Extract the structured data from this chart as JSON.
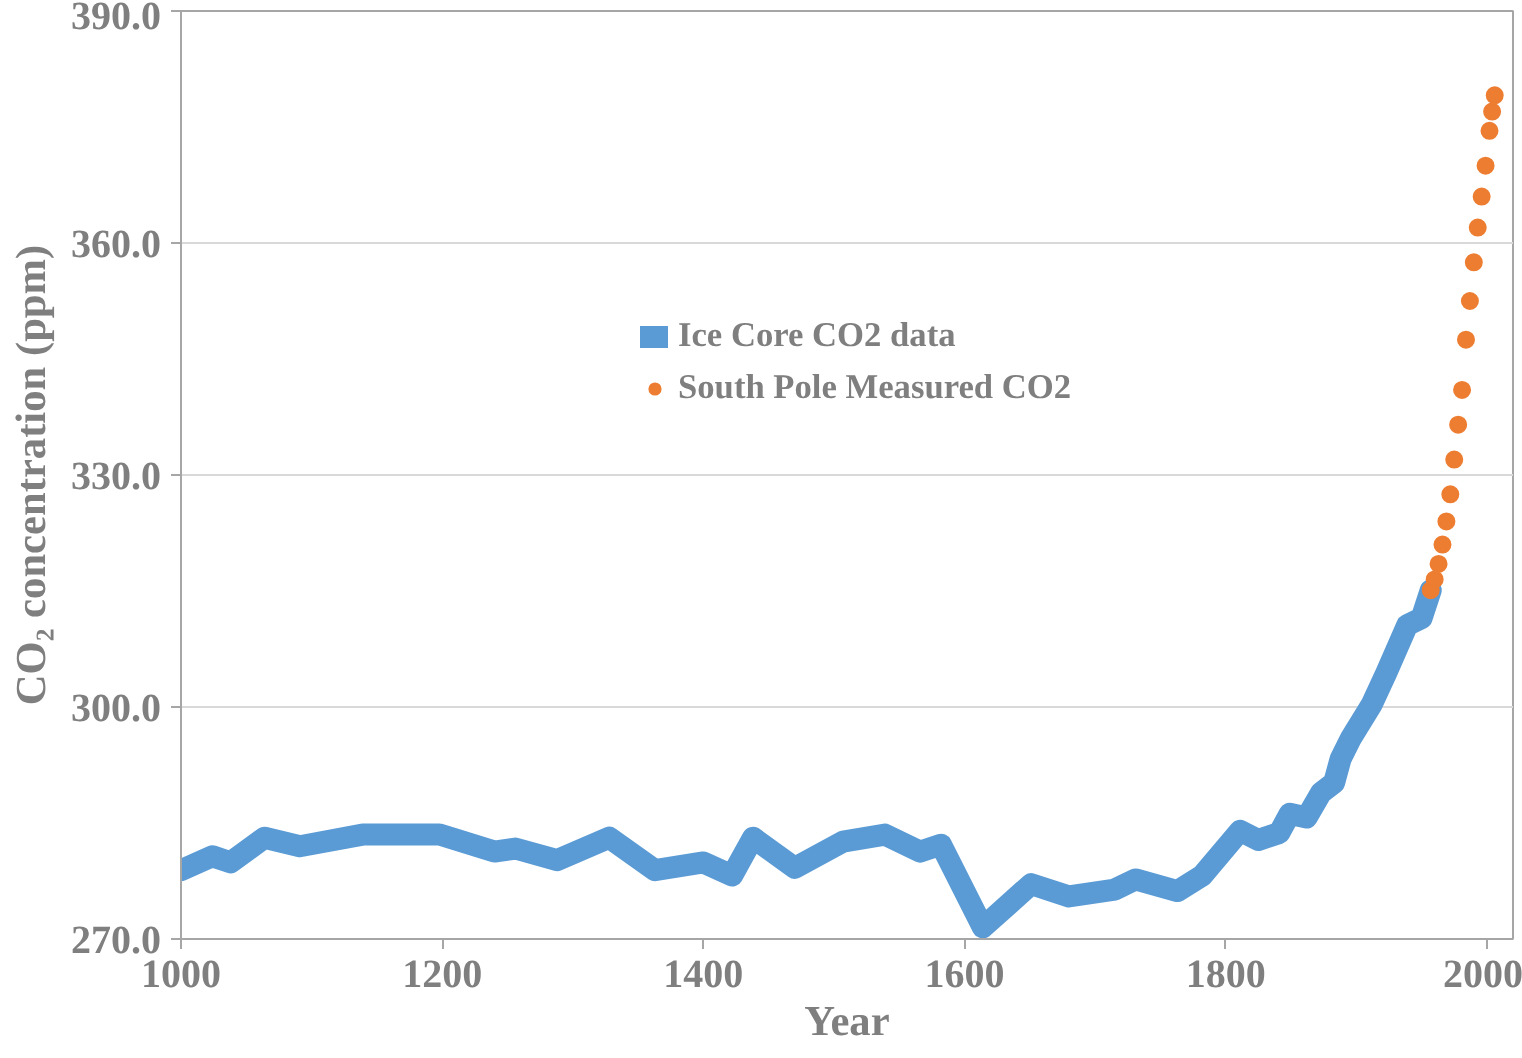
{
  "chart_data": {
    "type": "scatter",
    "xlabel": "Year",
    "ylabel": "CO₂ concentration (ppm)",
    "xlim": [
      1000,
      2020
    ],
    "ylim": [
      270,
      390
    ],
    "xticks": [
      1000,
      1200,
      1400,
      1600,
      1800,
      2000
    ],
    "yticks": [
      {
        "value": 270,
        "label": "270.0"
      },
      {
        "value": 300,
        "label": "300.0"
      },
      {
        "value": 330,
        "label": "330.0"
      },
      {
        "value": 360,
        "label": "360.0"
      },
      {
        "value": 390,
        "label": "390.0"
      }
    ],
    "grid": "y",
    "legend": "center",
    "series": [
      {
        "name": "Ice Core CO2 data",
        "type": "line",
        "color": "#5b9bd5",
        "x": [
          1000,
          1024,
          1038,
          1064,
          1091,
          1139,
          1198,
          1240,
          1256,
          1288,
          1328,
          1363,
          1400,
          1422,
          1438,
          1470,
          1507,
          1539,
          1566,
          1582,
          1614,
          1651,
          1680,
          1715,
          1731,
          1763,
          1782,
          1811,
          1825,
          1841,
          1849,
          1862,
          1873,
          1883,
          1888,
          1896,
          1912,
          1923,
          1939,
          1950,
          1957
        ],
        "values": [
          278.9,
          280.7,
          279.9,
          283.1,
          282.0,
          283.5,
          283.5,
          281.3,
          281.7,
          280.2,
          283.1,
          278.9,
          279.9,
          278.2,
          283.1,
          279.2,
          282.6,
          283.5,
          281.3,
          282.2,
          271.5,
          277.1,
          275.5,
          276.4,
          277.7,
          276.2,
          278.2,
          284.0,
          282.8,
          283.7,
          286.2,
          285.7,
          288.9,
          290.2,
          293.3,
          296.0,
          300.4,
          304.4,
          310.6,
          311.5,
          315.1
        ]
      },
      {
        "name": "South Pole Measured CO2",
        "marker": "circle",
        "color": "#ed7d31",
        "x": [
          1957,
          1960,
          1963,
          1966,
          1969,
          1972,
          1975,
          1978,
          1981,
          1984,
          1987,
          1990,
          1993,
          1996,
          1999,
          2002,
          2004,
          2006
        ],
        "values": [
          315.1,
          316.5,
          318.5,
          321.0,
          324.0,
          327.5,
          332.0,
          336.5,
          341.0,
          347.5,
          352.5,
          357.5,
          362.0,
          366.0,
          370.0,
          374.5,
          377.0,
          379.1
        ]
      }
    ]
  }
}
